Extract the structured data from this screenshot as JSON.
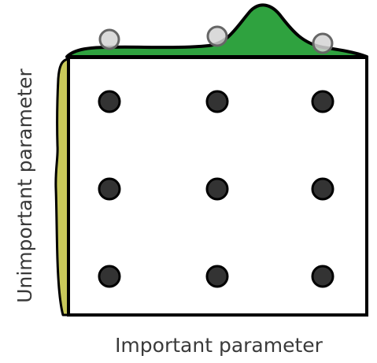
{
  "diagram": {
    "x_axis_label": "Important parameter",
    "y_axis_label": "Unimportant parameter",
    "grid": {
      "columns": 3,
      "rows": 3,
      "point_color": "#333333",
      "point_stroke": "#000000"
    },
    "important_distribution_color": "#2fa23f",
    "unimportant_distribution_color": "#c9c95a",
    "projected_point_color": "#d4d4d4"
  }
}
